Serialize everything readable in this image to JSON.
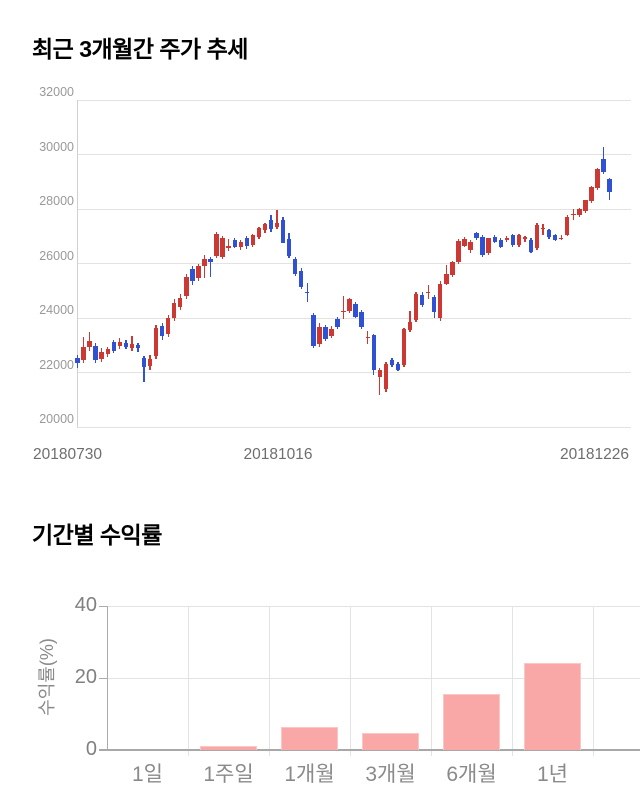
{
  "page": {
    "background": "#ffffff"
  },
  "chart_data": [
    {
      "type": "candlestick",
      "title": "최근 3개월간 주가 추세",
      "y_ticks": [
        32000,
        30000,
        28000,
        26000,
        24000,
        22000,
        20000
      ],
      "ylim": [
        20000,
        32000
      ],
      "x_labels": [
        "20180730",
        "20181016",
        "20181226"
      ],
      "grid": "horizontal",
      "legend": "none",
      "colors": {
        "up": "#cc3934",
        "down": "#3051d3"
      },
      "candles_format": "open,high,low,close",
      "candles": [
        [
          22550,
          22650,
          22150,
          22350
        ],
        [
          22450,
          23300,
          22350,
          22950
        ],
        [
          22930,
          23500,
          22800,
          23170
        ],
        [
          22990,
          23100,
          22350,
          22450
        ],
        [
          22500,
          22900,
          22400,
          22745
        ],
        [
          22685,
          22950,
          22550,
          22870
        ],
        [
          23110,
          23200,
          22700,
          22805
        ],
        [
          22990,
          23250,
          22850,
          23110
        ],
        [
          23100,
          23200,
          22850,
          22950
        ],
        [
          22900,
          23350,
          22800,
          23050
        ],
        [
          23000,
          23100,
          22750,
          22900
        ],
        [
          22550,
          22600,
          21650,
          22200
        ],
        [
          22250,
          22650,
          22100,
          22500
        ],
        [
          22600,
          23750,
          22500,
          23650
        ],
        [
          23700,
          23800,
          23200,
          23350
        ],
        [
          23400,
          24100,
          23300,
          24000
        ],
        [
          24000,
          24700,
          23900,
          24550
        ],
        [
          24400,
          24900,
          24300,
          24750
        ],
        [
          24800,
          25600,
          24700,
          25500
        ],
        [
          25800,
          25900,
          25200,
          25370
        ],
        [
          25450,
          26000,
          25350,
          25900
        ],
        [
          25900,
          26300,
          25450,
          26150
        ],
        [
          26150,
          26250,
          25500,
          26050
        ],
        [
          26290,
          27150,
          26200,
          27100
        ],
        [
          26230,
          27000,
          26150,
          26950
        ],
        [
          26550,
          26900,
          26450,
          26650
        ],
        [
          26850,
          26950,
          26550,
          26600
        ],
        [
          26600,
          26850,
          26500,
          26800
        ],
        [
          26950,
          27000,
          26550,
          26650
        ],
        [
          26680,
          27100,
          26600,
          27040
        ],
        [
          26960,
          27350,
          26900,
          27300
        ],
        [
          27230,
          27500,
          27100,
          27450
        ],
        [
          27600,
          27780,
          27150,
          27250
        ],
        [
          27350,
          27950,
          27250,
          27500
        ],
        [
          27590,
          27700,
          26740,
          26760
        ],
        [
          26900,
          27130,
          26200,
          26290
        ],
        [
          26170,
          26250,
          25550,
          25620
        ],
        [
          25740,
          25850,
          25050,
          25130
        ],
        [
          24950,
          25290,
          24585,
          24915
        ],
        [
          24100,
          24200,
          22900,
          22965
        ],
        [
          23050,
          23800,
          22950,
          23675
        ],
        [
          23660,
          23750,
          23150,
          23240
        ],
        [
          23355,
          23700,
          23250,
          23600
        ],
        [
          23970,
          24050,
          23600,
          23660
        ],
        [
          24220,
          24800,
          23970,
          24270
        ],
        [
          24270,
          24750,
          24200,
          24700
        ],
        [
          24520,
          24600,
          24000,
          24030
        ],
        [
          24210,
          24300,
          23600,
          23665
        ],
        [
          23300,
          23540,
          23050,
          23310
        ],
        [
          23360,
          23400,
          21900,
          22080
        ],
        [
          21835,
          22150,
          21165,
          22105
        ],
        [
          21400,
          22400,
          21300,
          22325
        ],
        [
          22470,
          22550,
          22200,
          22260
        ],
        [
          22325,
          22400,
          22050,
          22105
        ],
        [
          22260,
          23650,
          22200,
          23600
        ],
        [
          23565,
          24270,
          23500,
          23845
        ],
        [
          23910,
          24950,
          23850,
          24885
        ],
        [
          24860,
          24950,
          24400,
          24460
        ],
        [
          24940,
          25200,
          24700,
          24950
        ],
        [
          24770,
          24850,
          23980,
          24220
        ],
        [
          23990,
          25350,
          23900,
          25260
        ],
        [
          25255,
          25930,
          25200,
          25620
        ],
        [
          25560,
          26100,
          25500,
          26050
        ],
        [
          26050,
          26900,
          26000,
          26840
        ],
        [
          26660,
          26980,
          26600,
          26900
        ],
        [
          26480,
          26850,
          26400,
          26780
        ],
        [
          27105,
          27150,
          26880,
          26920
        ],
        [
          26985,
          27050,
          26250,
          26310
        ],
        [
          26375,
          26950,
          26300,
          26925
        ],
        [
          26985,
          27050,
          26750,
          26800
        ],
        [
          26865,
          26950,
          26550,
          26620
        ],
        [
          26925,
          27000,
          26800,
          26925
        ],
        [
          27030,
          27100,
          26600,
          26680
        ],
        [
          26680,
          27100,
          26620,
          27040
        ],
        [
          26900,
          27000,
          26800,
          26960
        ],
        [
          26865,
          26950,
          26380,
          26435
        ],
        [
          26555,
          27500,
          26500,
          27410
        ],
        [
          27300,
          27450,
          27050,
          27310
        ],
        [
          27230,
          27280,
          26900,
          26985
        ],
        [
          27040,
          27100,
          26820,
          26865
        ],
        [
          26950,
          27050,
          26850,
          26950
        ],
        [
          27040,
          27770,
          27000,
          27715
        ],
        [
          27830,
          28000,
          27600,
          27830
        ],
        [
          27770,
          28050,
          27700,
          28010
        ],
        [
          27915,
          28350,
          27850,
          28315
        ],
        [
          28280,
          28850,
          28200,
          28805
        ],
        [
          28780,
          29500,
          28700,
          29475
        ],
        [
          29840,
          30290,
          29300,
          29375
        ],
        [
          29110,
          29150,
          28315,
          28620
        ]
      ]
    },
    {
      "type": "bar",
      "title": "기간별 수익률",
      "ylabel": "수익률(%)",
      "y_ticks": [
        40,
        20,
        0
      ],
      "ylim": [
        0,
        40
      ],
      "categories": [
        "1일",
        "1주일",
        "1개월",
        "3개월",
        "6개월",
        "1년"
      ],
      "values": [
        0,
        1.2,
        6.5,
        4.7,
        15.5,
        24.3
      ],
      "bar_color": "#faa7a7",
      "bar_border_color": "#fbc6c6",
      "grid": "both",
      "legend": "none"
    }
  ]
}
